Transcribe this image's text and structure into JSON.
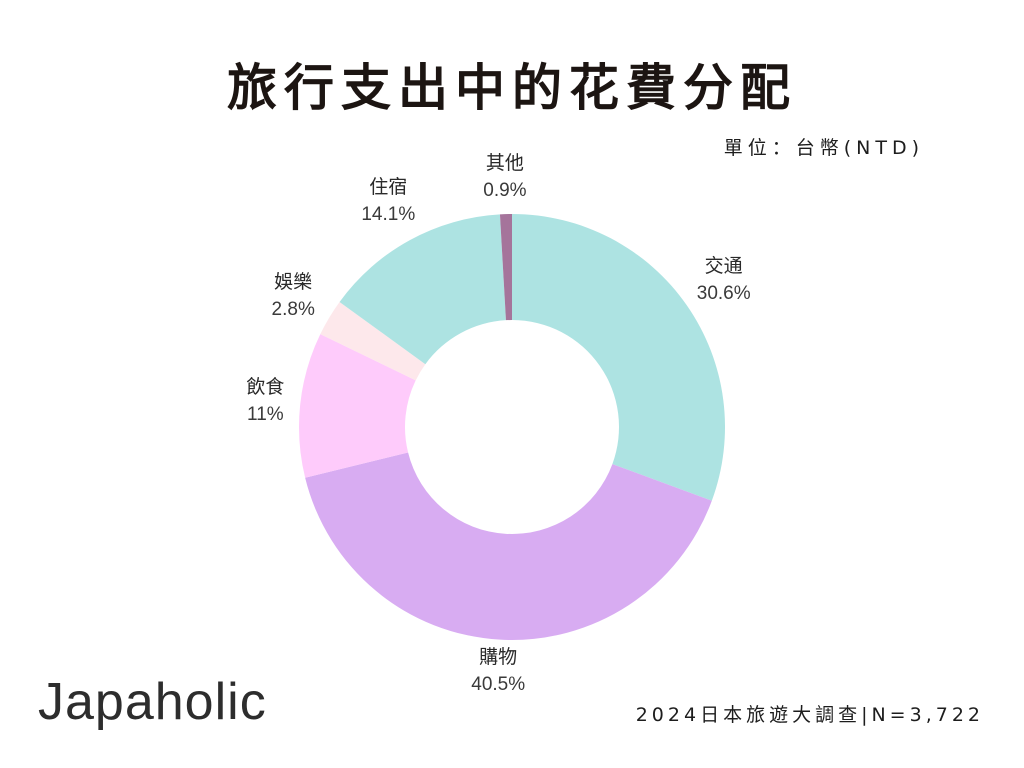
{
  "title": "旅行支出中的花費分配",
  "unit_note": "單位：台幣(NTD)",
  "brand": "Japaholic",
  "source_note": "2024日本旅遊大調查|N=3,722",
  "chart_data": {
    "type": "pie",
    "donut": true,
    "title": "旅行支出中的花費分配",
    "unit": "單位：台幣(NTD)",
    "slices": [
      {
        "label": "交通",
        "value": 30.6,
        "display": "30.6%",
        "color": "#ade3e2"
      },
      {
        "label": "購物",
        "value": 40.5,
        "display": "40.5%",
        "color": "#d8acf2"
      },
      {
        "label": "飲食",
        "value": 11,
        "display": "11%",
        "color": "#fecbfb"
      },
      {
        "label": "娛樂",
        "value": 2.8,
        "display": "2.8%",
        "color": "#fde8eb"
      },
      {
        "label": "住宿",
        "value": 14.1,
        "display": "14.1%",
        "color": "#ade3e2"
      },
      {
        "label": "其他",
        "value": 0.9,
        "display": "0.9%",
        "color": "#a5749b"
      }
    ]
  }
}
